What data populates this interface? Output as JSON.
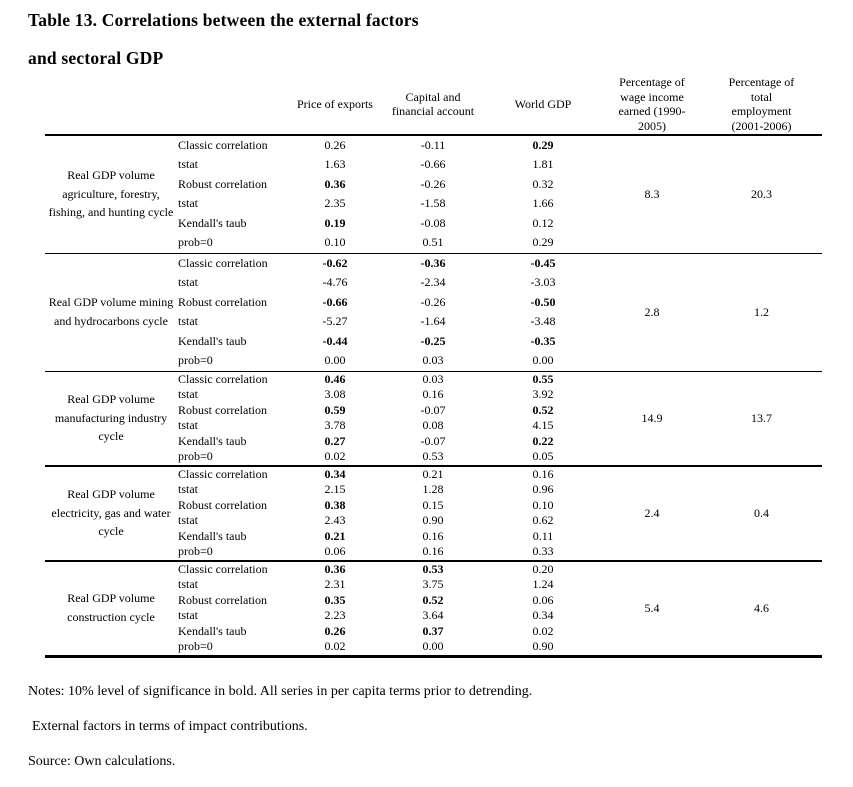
{
  "title": {
    "line1": "Table 13. Correlations between the external factors",
    "line2": "and sectoral GDP"
  },
  "table": {
    "headers": [
      "Price of exports",
      "Capital and\nfinancial account",
      "World GDP",
      "Percentage of\nwage income\nearned (1990-\n2005)",
      "Percentage of\ntotal\nemployment\n(2001-2006)"
    ],
    "groups": [
      {
        "sector": "Real GDP volume\nagriculture, forestry,\nfishing, and hunting cycle",
        "wage": "8.3",
        "emp": "20.3",
        "rows": [
          {
            "label": "Classic correlation",
            "values": [
              "0.26",
              "-0.11",
              "0.29"
            ],
            "bold": [
              false,
              false,
              true
            ]
          },
          {
            "label": "tstat",
            "values": [
              "1.63",
              "-0.66",
              "1.81"
            ],
            "bold": [
              false,
              false,
              false
            ]
          },
          {
            "label": "Robust correlation",
            "values": [
              "0.36",
              "-0.26",
              "0.32"
            ],
            "bold": [
              true,
              false,
              false
            ]
          },
          {
            "label": "tstat",
            "values": [
              "2.35",
              "-1.58",
              "1.66"
            ],
            "bold": [
              false,
              false,
              false
            ]
          },
          {
            "label": "Kendall's taub",
            "values": [
              "0.19",
              "-0.08",
              "0.12"
            ],
            "bold": [
              true,
              false,
              false
            ]
          },
          {
            "label": "prob=0",
            "values": [
              "0.10",
              "0.51",
              "0.29"
            ],
            "bold": [
              false,
              false,
              false
            ]
          }
        ]
      },
      {
        "sector": "Real GDP volume mining\nand hydrocarbons cycle",
        "wage": "2.8",
        "emp": "1.2",
        "rows": [
          {
            "label": "Classic correlation",
            "values": [
              "-0.62",
              "-0.36",
              "-0.45"
            ],
            "bold": [
              true,
              true,
              true
            ]
          },
          {
            "label": "tstat",
            "values": [
              "-4.76",
              "-2.34",
              "-3.03"
            ],
            "bold": [
              false,
              false,
              false
            ]
          },
          {
            "label": "Robust correlation",
            "values": [
              "-0.66",
              "-0.26",
              "-0.50"
            ],
            "bold": [
              true,
              false,
              true
            ]
          },
          {
            "label": "tstat",
            "values": [
              "-5.27",
              "-1.64",
              "-3.48"
            ],
            "bold": [
              false,
              false,
              false
            ]
          },
          {
            "label": "Kendall's taub",
            "values": [
              "-0.44",
              "-0.25",
              "-0.35"
            ],
            "bold": [
              true,
              true,
              true
            ]
          },
          {
            "label": "prob=0",
            "values": [
              "0.00",
              "0.03",
              "0.00"
            ],
            "bold": [
              false,
              false,
              false
            ]
          }
        ]
      },
      {
        "sector": "Real GDP volume\nmanufacturing industry\ncycle",
        "wage": "14.9",
        "emp": "13.7",
        "rows": [
          {
            "label": "Classic correlation",
            "values": [
              "0.46",
              "0.03",
              "0.55"
            ],
            "bold": [
              true,
              false,
              true
            ]
          },
          {
            "label": "tstat",
            "values": [
              "3.08",
              "0.16",
              "3.92"
            ],
            "bold": [
              false,
              false,
              false
            ]
          },
          {
            "label": "Robust correlation",
            "values": [
              "0.59",
              "-0.07",
              "0.52"
            ],
            "bold": [
              true,
              false,
              true
            ]
          },
          {
            "label": "tstat",
            "values": [
              "3.78",
              "0.08",
              "4.15"
            ],
            "bold": [
              false,
              false,
              false
            ]
          },
          {
            "label": "Kendall's taub",
            "values": [
              "0.27",
              "-0.07",
              "0.22"
            ],
            "bold": [
              true,
              false,
              true
            ]
          },
          {
            "label": "prob=0",
            "values": [
              "0.02",
              "0.53",
              "0.05"
            ],
            "bold": [
              false,
              false,
              false
            ]
          }
        ]
      },
      {
        "sector": "Real GDP volume\nelectricity, gas and water\ncycle",
        "wage": "2.4",
        "emp": "0.4",
        "rows": [
          {
            "label": "Classic correlation",
            "values": [
              "0.34",
              "0.21",
              "0.16"
            ],
            "bold": [
              true,
              false,
              false
            ]
          },
          {
            "label": "tstat",
            "values": [
              "2.15",
              "1.28",
              "0.96"
            ],
            "bold": [
              false,
              false,
              false
            ]
          },
          {
            "label": "Robust correlation",
            "values": [
              "0.38",
              "0.15",
              "0.10"
            ],
            "bold": [
              true,
              false,
              false
            ]
          },
          {
            "label": "tstat",
            "values": [
              "2.43",
              "0.90",
              "0.62"
            ],
            "bold": [
              false,
              false,
              false
            ]
          },
          {
            "label": "Kendall's taub",
            "values": [
              "0.21",
              "0.16",
              "0.11"
            ],
            "bold": [
              true,
              false,
              false
            ]
          },
          {
            "label": "prob=0",
            "values": [
              "0.06",
              "0.16",
              "0.33"
            ],
            "bold": [
              false,
              false,
              false
            ]
          }
        ]
      },
      {
        "sector": "Real GDP volume\nconstruction cycle",
        "wage": "5.4",
        "emp": "4.6",
        "rows": [
          {
            "label": "Classic correlation",
            "values": [
              "0.36",
              "0.53",
              "0.20"
            ],
            "bold": [
              true,
              true,
              false
            ]
          },
          {
            "label": "tstat",
            "values": [
              "2.31",
              "3.75",
              "1.24"
            ],
            "bold": [
              false,
              false,
              false
            ]
          },
          {
            "label": "Robust correlation",
            "values": [
              "0.35",
              "0.52",
              "0.06"
            ],
            "bold": [
              true,
              true,
              false
            ]
          },
          {
            "label": "tstat",
            "values": [
              "2.23",
              "3.64",
              "0.34"
            ],
            "bold": [
              false,
              false,
              false
            ]
          },
          {
            "label": "Kendall's taub",
            "values": [
              "0.26",
              "0.37",
              "0.02"
            ],
            "bold": [
              true,
              true,
              false
            ]
          },
          {
            "label": "prob=0",
            "values": [
              "0.02",
              "0.00",
              "0.90"
            ],
            "bold": [
              false,
              false,
              false
            ]
          }
        ]
      }
    ]
  },
  "notes": {
    "note1": "Notes: 10% level of significance in bold. All series in per capita terms prior to detrending.",
    "note2": "External factors in terms of impact contributions.",
    "source": "Source: Own calculations."
  }
}
